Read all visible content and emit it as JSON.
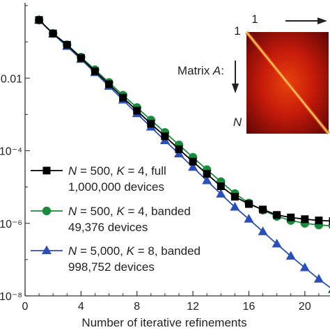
{
  "chart_data": {
    "type": "line",
    "xlabel": "Number of iterative refinements",
    "ylabel": "",
    "xlim": [
      0,
      21.8
    ],
    "ylim": [
      1e-08,
      1
    ],
    "y_scale": "log",
    "grid": false,
    "x_ticks": [
      0,
      4,
      8,
      12,
      16,
      20
    ],
    "x_tick_labels": [
      "0",
      "4",
      "8",
      "12",
      "16",
      "20"
    ],
    "y_ticks": [
      1e-08,
      1e-06,
      0.0001,
      0.01
    ],
    "y_tick_labels": [
      "10⁻⁸",
      "10⁻⁶",
      "10⁻⁴",
      "0.01"
    ],
    "legend_position": "lower-left",
    "series": [
      {
        "name_parts": [
          "N",
          " = 500, ",
          "K",
          " = 4, full"
        ],
        "subtitle": "1,000,000 devices",
        "color": "#000000",
        "marker": "square",
        "x": [
          1,
          2,
          3,
          4,
          5,
          6,
          7,
          8,
          9,
          10,
          11,
          12,
          13,
          14,
          15,
          16,
          17,
          18,
          19,
          20,
          21,
          22
        ],
        "y": [
          0.4,
          0.17,
          0.083,
          0.036,
          0.0155,
          0.0068,
          0.0029,
          0.00127,
          0.00055,
          0.00025,
          0.00011,
          5e-05,
          2.3e-05,
          1.05e-05,
          5.4e-06,
          3.4e-06,
          2.4e-06,
          1.7e-06,
          1.45e-06,
          1.3e-06,
          1.2e-06,
          1.15e-06
        ]
      },
      {
        "name_parts": [
          "N",
          " = 500, ",
          "K",
          " = 4, banded"
        ],
        "subtitle": "49,376 devices",
        "color": "#1a8a3c",
        "marker": "circle",
        "x": [
          1,
          2,
          3,
          4,
          5,
          6,
          7,
          8,
          9,
          10,
          11,
          12,
          13,
          14,
          15,
          16,
          17,
          18,
          19,
          20,
          21,
          22
        ],
        "y": [
          0.4,
          0.17,
          0.083,
          0.038,
          0.017,
          0.0076,
          0.0034,
          0.00155,
          0.0007,
          0.00032,
          0.000145,
          6.6e-05,
          3e-05,
          1.4e-05,
          6.6e-06,
          3.6e-06,
          2.3e-06,
          1.55e-06,
          1.2e-06,
          1e-06,
          9e-07,
          8.5e-07
        ]
      },
      {
        "name_parts": [
          "N",
          " = 5,000, ",
          "K",
          " = 8, banded"
        ],
        "subtitle": "998,752 devices",
        "color": "#2b4fb8",
        "marker": "triangle",
        "x": [
          1,
          2,
          3,
          4,
          5,
          6,
          7,
          8,
          9,
          10,
          11,
          12,
          13,
          14,
          15,
          16,
          17,
          18,
          19,
          20,
          21,
          22
        ],
        "y": [
          0.4,
          0.165,
          0.075,
          0.033,
          0.0142,
          0.006,
          0.0025,
          0.00105,
          0.00045,
          0.00019,
          8.2e-05,
          3.5e-05,
          1.5e-05,
          6.4e-06,
          2.8e-06,
          1.3e-06,
          5.9e-07,
          2.7e-07,
          1.25e-07,
          6e-08,
          2.9e-08,
          1.5e-08
        ]
      }
    ]
  },
  "inset": {
    "label_prefix": "Matrix ",
    "label_symbol": "A",
    "label_suffix": ":",
    "top_index": "1",
    "left_index": "1",
    "bottom_index": "N",
    "colors": {
      "dark": "#5a0404",
      "mid": "#c41a0a",
      "bright": "#e8420c",
      "diagonal": "#ffe680",
      "arrow": "#222222"
    }
  },
  "colors": {
    "axis": "#333333",
    "text": "#222222",
    "background": "#ffffff"
  }
}
